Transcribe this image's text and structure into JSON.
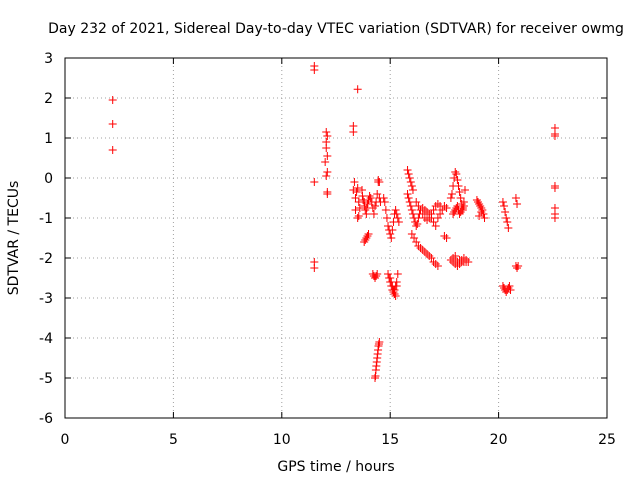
{
  "chart_data": {
    "type": "scatter",
    "title": "Day 232 of 2021, Sidereal Day-to-day VTEC variation (SDTVAR) for receiver owmg",
    "xlabel": "GPS time / hours",
    "ylabel": "SDTVAR / TECUs",
    "xlim": [
      0,
      25
    ],
    "ylim": [
      -6,
      3
    ],
    "xticks": [
      0,
      5,
      10,
      15,
      20,
      25
    ],
    "xtick_labels": [
      "0",
      "5",
      "10",
      "15",
      "20",
      "25"
    ],
    "yticks": [
      3,
      2,
      1,
      0,
      -1,
      -2,
      -3,
      -4,
      -5,
      -6
    ],
    "ytick_labels": [
      "3",
      "2",
      "1",
      "0",
      "-1",
      "-2",
      "-3",
      "-4",
      "-5",
      "-6"
    ],
    "grid": true,
    "marker": "plus",
    "series": [
      {
        "name": "SDTVAR",
        "color": "#ff0000",
        "x": [
          2.2,
          2.2,
          2.2,
          11.5,
          11.5,
          11.5,
          11.5,
          11.5,
          12.05,
          12.1,
          12.05,
          12.1,
          12.0,
          12.1,
          12.05,
          12.1,
          12.1,
          12.05,
          13.3,
          13.3,
          13.3,
          13.35,
          13.4,
          13.4,
          13.5,
          13.5,
          13.55,
          13.5,
          13.45,
          13.55,
          13.6,
          13.7,
          13.72,
          13.75,
          13.8,
          13.82,
          13.85,
          13.9,
          13.92,
          13.95,
          14.0,
          14.05,
          14.1,
          14.15,
          14.2,
          14.25,
          14.3,
          14.35,
          14.4,
          14.45,
          14.5,
          14.55,
          13.8,
          13.85,
          13.9,
          13.95,
          14.0,
          14.2,
          14.25,
          14.3,
          14.35,
          14.4,
          14.3,
          14.32,
          14.34,
          14.36,
          14.38,
          14.4,
          14.42,
          14.44,
          14.46,
          14.48,
          14.5,
          14.45,
          14.5,
          14.7,
          14.75,
          14.8,
          14.85,
          14.9,
          14.95,
          15.0,
          15.05,
          15.1,
          15.15,
          15.2,
          15.25,
          15.3,
          15.35,
          15.4,
          14.9,
          14.95,
          15.0,
          15.05,
          15.1,
          15.15,
          15.2,
          15.25,
          15.3,
          15.0,
          15.05,
          15.1,
          15.15,
          15.2,
          15.25,
          15.3,
          15.35,
          15.8,
          15.85,
          15.9,
          15.95,
          16.0,
          16.05,
          15.8,
          15.85,
          15.9,
          15.95,
          16.0,
          16.05,
          16.1,
          16.15,
          16.2,
          16.25,
          16.3,
          16.35,
          16.0,
          16.1,
          16.2,
          16.3,
          16.4,
          16.5,
          16.6,
          16.7,
          16.8,
          16.9,
          17.0,
          17.1,
          17.2,
          16.2,
          16.3,
          16.4,
          16.5,
          16.6,
          16.7,
          16.8,
          16.9,
          17.0,
          17.1,
          17.2,
          17.3,
          16.5,
          16.6,
          16.7,
          16.8,
          16.9,
          17.0,
          17.1,
          17.2,
          17.3,
          17.4,
          17.5,
          17.6,
          17.5,
          17.6,
          17.8,
          17.85,
          17.9,
          17.95,
          18.0,
          18.05,
          18.1,
          18.15,
          18.2,
          18.25,
          18.3,
          18.35,
          18.4,
          18.45,
          17.9,
          17.95,
          18.0,
          18.05,
          18.1,
          18.15,
          18.2,
          18.25,
          18.3,
          18.35,
          18.4,
          17.8,
          17.9,
          18.0,
          18.1,
          18.2,
          18.3,
          18.4,
          18.5,
          18.6,
          17.9,
          18.0,
          18.1,
          18.2,
          18.3,
          18.4,
          18.5,
          19.0,
          19.05,
          19.1,
          19.15,
          19.2,
          19.25,
          19.3,
          19.35,
          19.1,
          19.2,
          20.2,
          20.25,
          20.3,
          20.35,
          20.4,
          20.45,
          20.5,
          20.55,
          20.2,
          20.25,
          20.3,
          20.35,
          20.4,
          20.45,
          20.8,
          20.85,
          20.9,
          20.8,
          20.85,
          22.6,
          22.6,
          22.6,
          22.6,
          22.6,
          22.6,
          22.6,
          22.6
        ],
        "y": [
          1.95,
          1.35,
          0.7,
          2.8,
          2.7,
          -0.1,
          -2.1,
          -2.25,
          1.15,
          1.05,
          0.75,
          0.55,
          0.4,
          0.15,
          0.05,
          -0.35,
          -0.4,
          0.9,
          1.3,
          1.15,
          -0.3,
          -0.1,
          -0.5,
          -0.8,
          2.22,
          -0.25,
          -0.6,
          -1.0,
          -0.35,
          -0.95,
          -0.75,
          -0.3,
          -0.45,
          -0.55,
          -0.6,
          -0.7,
          -0.8,
          -0.9,
          -0.75,
          -0.65,
          -0.55,
          -0.45,
          -0.5,
          -0.6,
          -0.75,
          -0.9,
          -0.7,
          -0.6,
          -0.4,
          -0.1,
          -0.5,
          -0.6,
          -1.6,
          -1.55,
          -1.5,
          -1.45,
          -1.4,
          -2.4,
          -2.45,
          -2.5,
          -2.45,
          -2.4,
          -5.0,
          -4.95,
          -4.8,
          -4.7,
          -4.6,
          -4.5,
          -4.4,
          -4.3,
          -4.2,
          -4.15,
          -4.1,
          -0.05,
          -0.1,
          -0.5,
          -0.6,
          -0.8,
          -1.0,
          -1.2,
          -1.3,
          -1.4,
          -1.5,
          -1.3,
          -1.1,
          -0.9,
          -0.8,
          -0.9,
          -1.0,
          -1.1,
          -2.4,
          -2.5,
          -2.6,
          -2.7,
          -2.8,
          -2.85,
          -2.8,
          -2.7,
          -2.6,
          -2.5,
          -2.6,
          -2.7,
          -2.8,
          -2.9,
          -2.95,
          -2.7,
          -2.4,
          0.2,
          0.1,
          0.0,
          -0.1,
          -0.2,
          -0.3,
          -0.4,
          -0.5,
          -0.6,
          -0.7,
          -0.8,
          -0.9,
          -1.0,
          -1.1,
          -1.2,
          -1.15,
          -1.0,
          -0.9,
          -1.4,
          -1.5,
          -1.6,
          -1.7,
          -1.75,
          -1.8,
          -1.85,
          -1.9,
          -1.95,
          -2.0,
          -2.1,
          -2.15,
          -2.2,
          -0.6,
          -0.7,
          -0.8,
          -0.9,
          -1.0,
          -1.05,
          -1.0,
          -0.9,
          -0.8,
          -0.7,
          -0.65,
          -0.7,
          -0.75,
          -0.8,
          -0.85,
          -0.9,
          -1.0,
          -1.1,
          -1.2,
          -1.0,
          -0.9,
          -0.8,
          -0.7,
          -0.75,
          -1.45,
          -1.5,
          -0.5,
          -0.4,
          -0.2,
          0.0,
          0.15,
          0.1,
          -0.05,
          -0.2,
          -0.35,
          -0.5,
          -0.65,
          -0.8,
          -0.6,
          -0.3,
          -0.9,
          -0.85,
          -0.8,
          -0.75,
          -0.7,
          -0.8,
          -0.9,
          -0.85,
          -0.8,
          -0.75,
          -0.7,
          -2.05,
          -2.1,
          -2.15,
          -2.1,
          -2.05,
          -2.1,
          -2.1,
          -2.05,
          -2.1,
          -2.0,
          -1.95,
          -2.2,
          -2.15,
          -2.05,
          -2.0,
          -2.1,
          -0.55,
          -0.6,
          -0.65,
          -0.7,
          -0.75,
          -0.8,
          -0.9,
          -1.0,
          -0.95,
          -0.85,
          -2.7,
          -2.75,
          -2.8,
          -2.85,
          -2.8,
          -2.75,
          -2.7,
          -2.8,
          -0.6,
          -0.7,
          -0.85,
          -1.0,
          -1.1,
          -1.25,
          -2.2,
          -2.25,
          -2.2,
          -0.5,
          -0.65,
          1.25,
          1.1,
          1.05,
          -0.2,
          -0.25,
          -0.75,
          -0.9,
          -1.0
        ]
      }
    ]
  }
}
